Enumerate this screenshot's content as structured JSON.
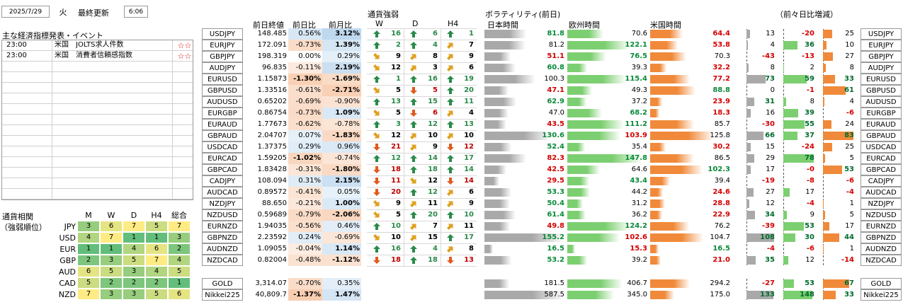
{
  "header": {
    "date": "2025/7/29",
    "weekday": "火",
    "update_label": "最終更新",
    "update_time": "6:06"
  },
  "events": {
    "title": "主な経済指標発表・イベント",
    "rows": [
      {
        "time": "23:00",
        "country": "米国",
        "name": "JOLTS求人件数",
        "stars": "☆☆"
      },
      {
        "time": "23:00",
        "country": "米国",
        "name": "消費者信頼感指数",
        "stars": "☆☆"
      }
    ],
    "empty_rows": 13
  },
  "corr": {
    "title1": "通貨相関",
    "title2": "（強弱順位）",
    "headers": [
      "M",
      "W",
      "D",
      "H4",
      "総合"
    ],
    "rows": [
      {
        "cur": "JPY",
        "v": [
          3,
          6,
          7,
          5,
          7
        ]
      },
      {
        "cur": "USD",
        "v": [
          4,
          7,
          1,
          1,
          3
        ]
      },
      {
        "cur": "EUR",
        "v": [
          1,
          1,
          4,
          6,
          2
        ]
      },
      {
        "cur": "GBP",
        "v": [
          2,
          3,
          5,
          7,
          4
        ]
      },
      {
        "cur": "AUD",
        "v": [
          6,
          5,
          3,
          4,
          5
        ]
      },
      {
        "cur": "CAD",
        "v": [
          5,
          2,
          2,
          2,
          1
        ]
      },
      {
        "cur": "NZD",
        "v": [
          7,
          3,
          3,
          5,
          6
        ]
      }
    ]
  },
  "quote_headers": {
    "close": "前日終値",
    "dchg": "前日比",
    "mchg": "前月比"
  },
  "strength_headers": {
    "title": "通貨強弱",
    "w": "W",
    "d": "D",
    "h4": "H4"
  },
  "vol_headers": {
    "title": "ボラティリティ(前日)",
    "jp": "日本時間",
    "eu": "欧州時間",
    "us": "米国時間",
    "diff": "（前々日比増減）"
  },
  "pairs": [
    {
      "name": "USDJPY",
      "close": "148.485",
      "dchg": "0.56%",
      "mchg": "3.12%",
      "w": [
        "u",
        16
      ],
      "d": [
        "u",
        6
      ],
      "h4": [
        "u",
        1
      ],
      "vj": "81.8",
      "ve": "70.6",
      "vu": "64.4",
      "dj": "13",
      "de": "-20",
      "du": "25"
    },
    {
      "name": "EURJPY",
      "close": "172.091",
      "dchg": "-0.73%",
      "mchg": "1.39%",
      "w": [
        "u",
        2
      ],
      "d": [
        "u",
        4
      ],
      "h4": [
        "ne",
        7
      ],
      "vj": "81.2",
      "ve": "122.1",
      "vu": "53.8",
      "dj": "4",
      "de": "36",
      "du": "10"
    },
    {
      "name": "GBPJPY",
      "close": "198.319",
      "dchg": "0.00%",
      "mchg": "0.29%",
      "w": [
        "se",
        9
      ],
      "d": [
        "ne",
        8
      ],
      "h4": [
        "ne",
        9
      ],
      "vj": "51.1",
      "ve": "76.5",
      "vu": "70.3",
      "dj": "-43",
      "de": "-13",
      "du": "27"
    },
    {
      "name": "AUDJPY",
      "close": "96.835",
      "dchg": "-0.11%",
      "mchg": "2.19%",
      "w": [
        "se",
        12
      ],
      "d": [
        "ne",
        3
      ],
      "h4": [
        "ne",
        6
      ],
      "vj": "60.8",
      "ve": "39.3",
      "vu": "32.2",
      "dj": "8",
      "de": "2",
      "du": "8"
    },
    {
      "name": "EURUSD",
      "close": "1.15873",
      "dchg": "-1.30%",
      "mchg": "-1.69%",
      "w": [
        "u",
        1
      ],
      "d": [
        "u",
        16
      ],
      "h4": [
        "u",
        19
      ],
      "vj": "100.3",
      "ve": "115.4",
      "vu": "77.2",
      "dj": "73",
      "de": "59",
      "du": "33"
    },
    {
      "name": "GBPUSD",
      "close": "1.33516",
      "dchg": "-0.61%",
      "mchg": "-2.71%",
      "w": [
        "se",
        5
      ],
      "d": [
        "d",
        5
      ],
      "h4": [
        "u",
        20
      ],
      "w2": "",
      "vj": "47.1",
      "ve": "49.3",
      "vu": "88.8",
      "dj": "0",
      "de": "-1",
      "du": "61"
    },
    {
      "name": "AUDUSD",
      "close": "0.65202",
      "dchg": "-0.69%",
      "mchg": "-0.90%",
      "w": [
        "u",
        13
      ],
      "d": [
        "u",
        15
      ],
      "h4": [
        "u",
        11
      ],
      "vj": "62.9",
      "ve": "37.2",
      "vu": "23.9",
      "dj": "31",
      "de": "8",
      "du": "4"
    },
    {
      "name": "EURGBP",
      "close": "0.86754",
      "dchg": "-0.73%",
      "mchg": "1.09%",
      "w": [
        "se",
        5
      ],
      "d": [
        "d",
        6
      ],
      "h4": [
        "ne",
        4
      ],
      "vj": "47.0",
      "ve": "68.2",
      "vu": "18.3",
      "dj": "16",
      "de": "39",
      "du": "-6"
    },
    {
      "name": "EURAUD",
      "close": "1.77673",
      "dchg": "-0.62%",
      "mchg": "-0.78%",
      "w": [
        "u",
        3
      ],
      "d": [
        "u",
        12
      ],
      "h4": [
        "u",
        13
      ],
      "vj": "43.5",
      "ve": "111.2",
      "vu": "85.7",
      "dj": "-30",
      "de": "55",
      "du": "24"
    },
    {
      "name": "GBPAUD",
      "close": "2.04707",
      "dchg": "0.07%",
      "mchg": "-1.83%",
      "w": [
        "se",
        12
      ],
      "d": [
        "ne",
        10
      ],
      "h4": [
        "ne",
        10
      ],
      "vj": "130.6",
      "ve": "103.9",
      "vu": "125.8",
      "dj": "66",
      "de": "37",
      "du": "83"
    },
    {
      "name": "USDCAD",
      "close": "1.37375",
      "dchg": "0.29%",
      "mchg": "0.96%",
      "w": [
        "d",
        21
      ],
      "d": [
        "ne",
        9
      ],
      "h4": [
        "d",
        12
      ],
      "vj": "52.4",
      "ve": "35.4",
      "vu": "30.2",
      "dj": "15",
      "de": "-24",
      "du": "25"
    },
    {
      "name": "EURCAD",
      "close": "1.59205",
      "dchg": "-1.02%",
      "mchg": "-0.74%",
      "w": [
        "u",
        12
      ],
      "d": [
        "u",
        14
      ],
      "h4": [
        "u",
        17
      ],
      "vj": "82.3",
      "ve": "147.8",
      "vu": "86.5",
      "dj": "29",
      "de": "78",
      "du": "5"
    },
    {
      "name": "GBPCAD",
      "close": "1.83428",
      "dchg": "-0.31%",
      "mchg": "-1.80%",
      "w": [
        "d",
        18
      ],
      "d": [
        "u",
        18
      ],
      "h4": [
        "u",
        14
      ],
      "vj": "42.5",
      "ve": "64.6",
      "vu": "102.3",
      "dj": "17",
      "de": "-0",
      "du": "53"
    },
    {
      "name": "CADJPY",
      "close": "108.094",
      "dchg": "0.31%",
      "mchg": "2.15%",
      "w": [
        "d",
        11
      ],
      "d": [
        "se",
        12
      ],
      "h4": [
        "d",
        14
      ],
      "vj": "29.5",
      "ve": "43.4",
      "vu": "39.4",
      "dj": "-19",
      "de": "-8",
      "du": "-6"
    },
    {
      "name": "AUDCAD",
      "close": "0.89572",
      "dchg": "-0.41%",
      "mchg": "0.05%",
      "w": [
        "d",
        20
      ],
      "d": [
        "u",
        12
      ],
      "h4": [
        "ne",
        6
      ],
      "vj": "53.3",
      "ve": "44.2",
      "vu": "24.6",
      "dj": "27",
      "de": "17",
      "du": "-4"
    },
    {
      "name": "NZDJPY",
      "close": "88.650",
      "dchg": "-0.21%",
      "mchg": "1.00%",
      "w": [
        "se",
        9
      ],
      "d": [
        "ne",
        11
      ],
      "h4": [
        "ne",
        9
      ],
      "vj": "50.4",
      "ve": "31.2",
      "vu": "28.8",
      "dj": "12",
      "de": "-4",
      "du": "1"
    },
    {
      "name": "NZDUSD",
      "close": "0.59689",
      "dchg": "-0.79%",
      "mchg": "-2.06%",
      "w": [
        "se",
        5
      ],
      "d": [
        "u",
        20
      ],
      "h4": [
        "u",
        10
      ],
      "vj": "61.4",
      "ve": "36.2",
      "vu": "22.9",
      "dj": "34",
      "de": "9",
      "du": "5"
    },
    {
      "name": "EURNZD",
      "close": "1.94035",
      "dchg": "-0.56%",
      "mchg": "0.46%",
      "w": [
        "u",
        10
      ],
      "d": [
        "ne",
        7
      ],
      "h4": [
        "ne",
        11
      ],
      "vj": "49.8",
      "ve": "124.2",
      "vu": "76.2",
      "dj": "-39",
      "de": "53",
      "du": "17"
    },
    {
      "name": "GBPNZD",
      "close": "2.23592",
      "dchg": "0.24%",
      "mchg": "-0.69%",
      "w": [
        "se",
        10
      ],
      "d": [
        "ne",
        15
      ],
      "h4": [
        "u",
        17
      ],
      "vj": "155.2",
      "ve": "102.6",
      "vu": "104.7",
      "dj": "108",
      "de": "30",
      "du": "44"
    },
    {
      "name": "AUDNZD",
      "close": "1.09055",
      "dchg": "-0.04%",
      "mchg": "1.14%",
      "w": [
        "u",
        16
      ],
      "d": [
        "u",
        4
      ],
      "h4": [
        "ne",
        8
      ],
      "vj": "16.5",
      "ve": "15.3",
      "vu": "16.5",
      "dj": "-4",
      "de": "-6",
      "du": "1"
    },
    {
      "name": "NZDCAD",
      "close": "0.82004",
      "dchg": "-0.48%",
      "mchg": "-1.12%",
      "w": [
        "d",
        18
      ],
      "d": [
        "u",
        18
      ],
      "h4": [
        "d",
        13
      ],
      "vj": "53.2",
      "ve": "39.2",
      "vu": "21.0",
      "dj": "35",
      "de": "12",
      "du": "-14"
    }
  ],
  "extras": [
    {
      "name": "GOLD",
      "close": "3,314.07",
      "dchg": "-0.70%",
      "mchg": "0.35%",
      "vj": "181.5",
      "ve": "406.7",
      "vu": "294.2",
      "dj": "-27",
      "de": "53",
      "du": "67"
    },
    {
      "name": "Nikkei225",
      "close": "40,809.7",
      "dchg": "-1.37%",
      "mchg": "1.47%",
      "vj": "587.5",
      "ve": "345.0",
      "vu": "175.0",
      "dj": "133",
      "de": "148",
      "du": "33"
    }
  ],
  "colors": {
    "up": "#2a8a4a",
    "down": "#e05a1e",
    "side": "#e0a020",
    "gray_bar": "#a9a9a9",
    "green_bar": "#7ccf70",
    "orange_bar": "#f08a3a",
    "neg_bg": "#f8cbad",
    "pos_bg": "#bdd7ee",
    "corr_green": "#63be7b",
    "corr_yellow": "#ffeb84"
  }
}
